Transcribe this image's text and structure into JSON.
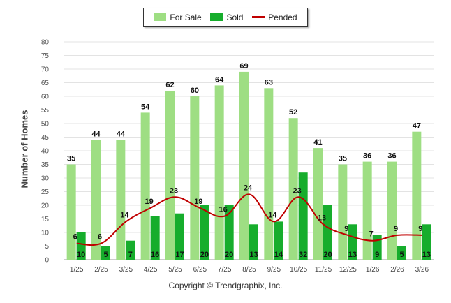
{
  "chart_data": {
    "type": "bar",
    "title": "",
    "xlabel": "",
    "ylabel": "Number of Homes",
    "ylim": [
      0,
      80
    ],
    "ytick_step": 5,
    "categories": [
      "1/25",
      "2/25",
      "3/25",
      "4/25",
      "5/25",
      "6/25",
      "7/25",
      "8/25",
      "9/25",
      "10/25",
      "11/25",
      "12/25",
      "1/26",
      "2/26",
      "3/26"
    ],
    "series": [
      {
        "name": "For Sale",
        "type": "bar",
        "color": "#9ede83",
        "values": [
          35,
          44,
          44,
          54,
          62,
          60,
          64,
          69,
          63,
          52,
          41,
          35,
          36,
          36,
          47
        ]
      },
      {
        "name": "Sold",
        "type": "bar",
        "color": "#16ad2c",
        "values": [
          10,
          5,
          7,
          16,
          17,
          20,
          20,
          13,
          14,
          32,
          20,
          13,
          9,
          5,
          13
        ]
      },
      {
        "name": "Pended",
        "type": "line",
        "color": "#c00000",
        "values": [
          6,
          6,
          14,
          19,
          23,
          19,
          16,
          24,
          14,
          23,
          13,
          9,
          7,
          9,
          9
        ]
      }
    ],
    "legend_position": "top-center"
  },
  "footer": {
    "copyright": "Copyright © Trendgraphix, Inc."
  }
}
